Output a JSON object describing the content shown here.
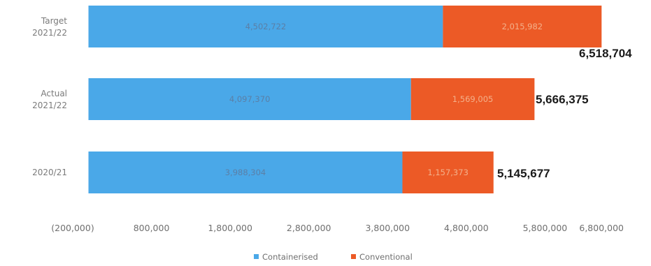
{
  "chart_data": {
    "type": "bar",
    "orientation": "horizontal",
    "stacked": true,
    "categories": [
      [
        "Target",
        "2021/22"
      ],
      [
        "Actual",
        "2021/22"
      ],
      [
        "2020/21"
      ]
    ],
    "series": [
      {
        "name": "Containerised",
        "color": "#4aa8e8",
        "values": [
          4502722,
          4097370,
          3988304
        ],
        "value_labels": [
          "4,502,722",
          "4,097,370",
          "3,988,304"
        ]
      },
      {
        "name": "Conventional",
        "color": "#ec5a26",
        "values": [
          2015982,
          1569005,
          1157373
        ],
        "value_labels": [
          "2,015,982",
          "1,569,005",
          "1,157,373"
        ]
      }
    ],
    "totals": [
      "6,518,704",
      "5,666,375",
      "5,145,677"
    ],
    "x_axis": {
      "ticks": [
        -200000,
        800000,
        1800000,
        2800000,
        3800000,
        4800000,
        5800000,
        6800000
      ],
      "tick_labels": [
        "(200,000)",
        "800,000",
        "1,800,000",
        "2,800,000",
        "3,800,000",
        "4,800,000",
        "5,800,000",
        "6,800,000"
      ],
      "range": [
        -200000,
        6800000
      ]
    },
    "legend_position": "bottom",
    "grid": false
  }
}
